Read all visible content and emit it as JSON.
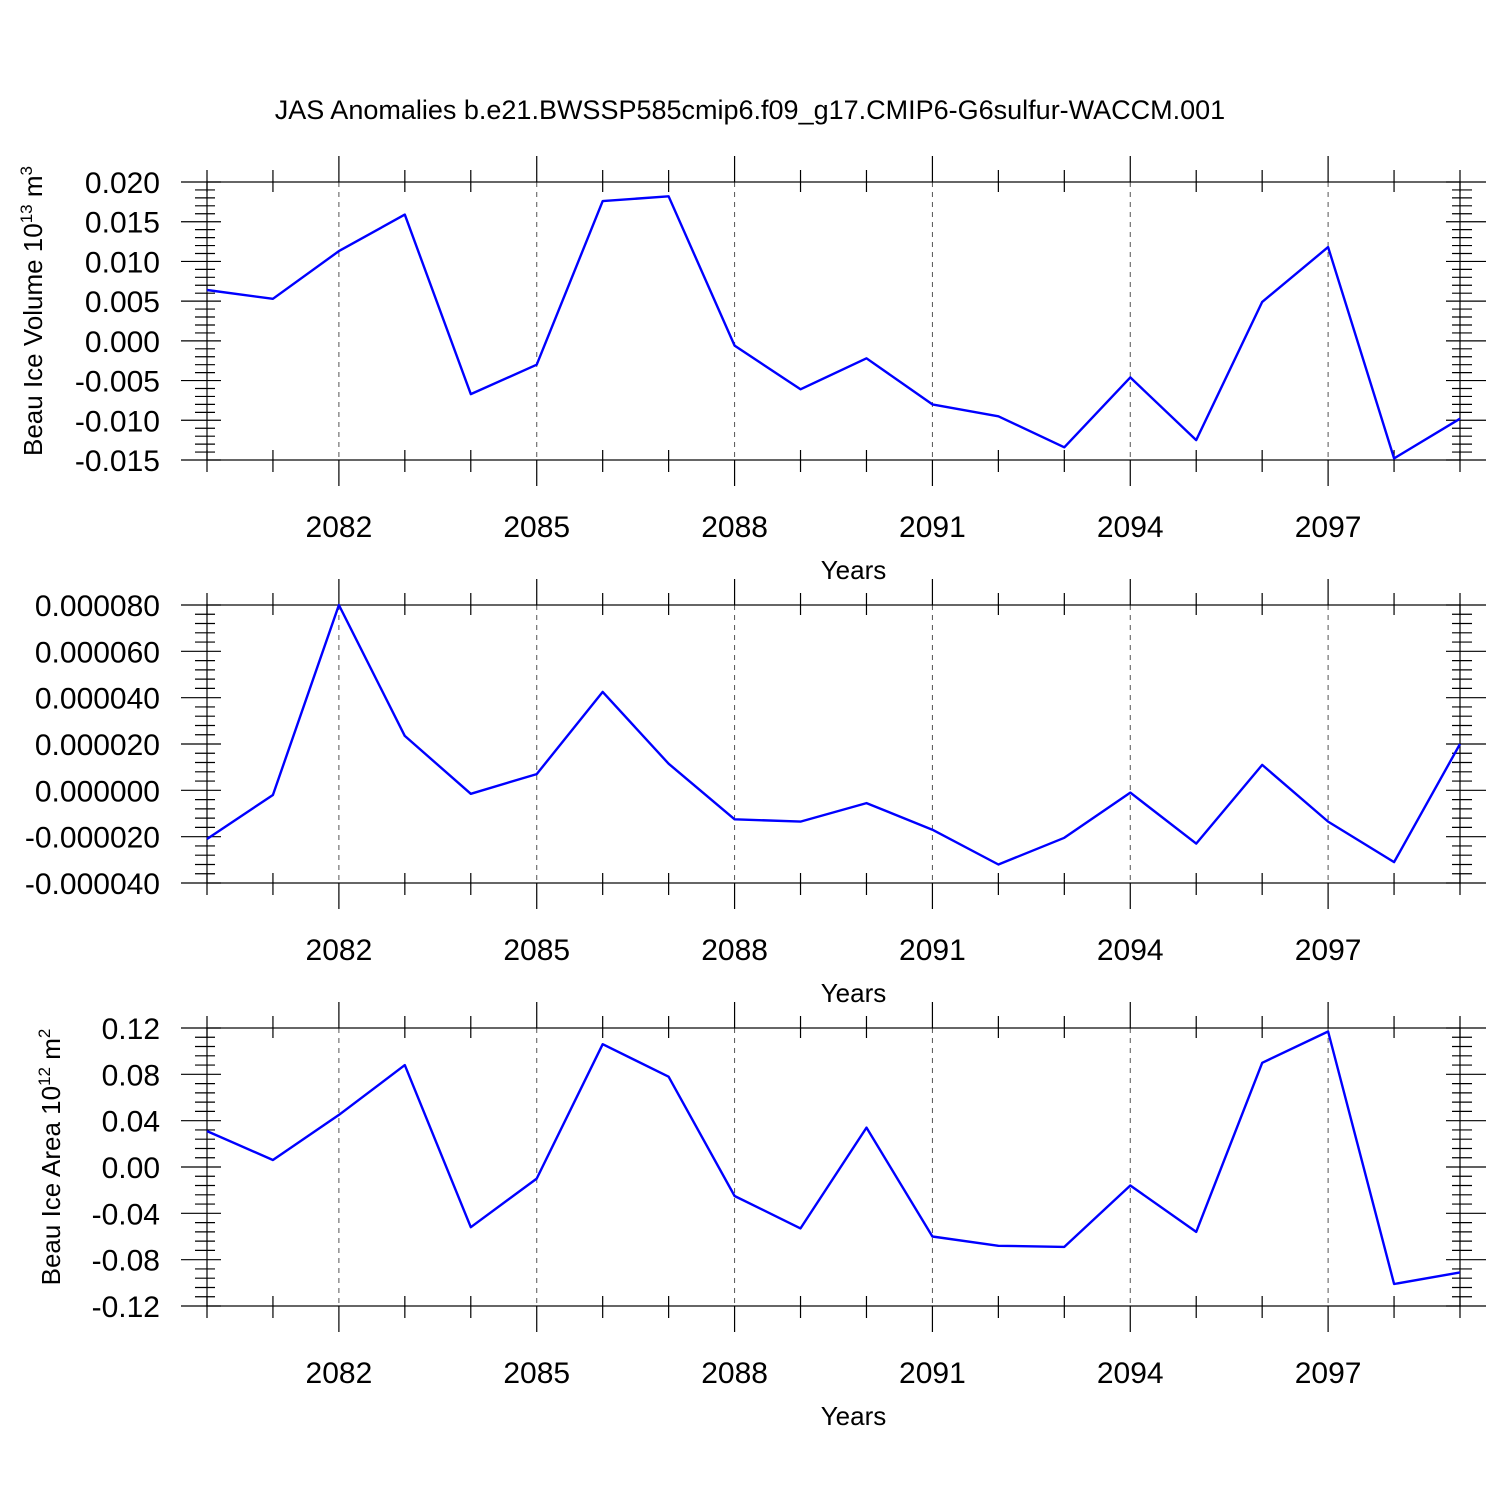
{
  "title": "JAS Anomalies b.e21.BWSSP585cmip6.f09_g17.CMIP6-G6sulfur-WACCM.001",
  "colors": {
    "series": "#0000ff",
    "grid": "#555555"
  },
  "chart_data": [
    {
      "type": "line",
      "ylabel_base": "Beau Ice Volume 10",
      "ylabel_sup": "13",
      "ylabel_unit": " m",
      "ylabel_unit_sup": "3",
      "xlabel": "Years",
      "xlim": [
        2080,
        2099
      ],
      "ylim": [
        -0.015,
        0.02
      ],
      "yticks": [
        -0.015,
        -0.01,
        -0.005,
        0.0,
        0.005,
        0.01,
        0.015,
        0.02
      ],
      "ytick_labels": [
        "-0.015",
        "-0.010",
        "-0.005",
        "0.000",
        "0.005",
        "0.010",
        "0.015",
        "0.020"
      ],
      "xticks": [
        2082,
        2085,
        2088,
        2091,
        2094,
        2097
      ],
      "xtick_labels": [
        "2082",
        "2085",
        "2088",
        "2091",
        "2094",
        "2097"
      ],
      "grid": "dashed vertical at labeled years",
      "series": [
        {
          "color": "#0000ff",
          "x": [
            2080,
            2081,
            2082,
            2083,
            2084,
            2085,
            2086,
            2087,
            2088,
            2089,
            2090,
            2091,
            2092,
            2093,
            2094,
            2095,
            2096,
            2097,
            2098,
            2099
          ],
          "values": [
            0.0064,
            0.0053,
            0.0113,
            0.0159,
            -0.0067,
            -0.003,
            0.0176,
            0.0182,
            -0.0006,
            -0.0061,
            -0.0022,
            -0.008,
            -0.0095,
            -0.0134,
            -0.0046,
            -0.0125,
            0.0049,
            0.0118,
            -0.0148,
            -0.0098
          ]
        }
      ]
    },
    {
      "type": "line",
      "ylabel_base": "",
      "ylabel_sup": "",
      "ylabel_unit": "",
      "ylabel_unit_sup": "",
      "xlabel": "Years",
      "xlim": [
        2080,
        2099
      ],
      "ylim": [
        -4e-05,
        8e-05
      ],
      "yticks": [
        -4e-05,
        -2e-05,
        0.0,
        2e-05,
        4e-05,
        6e-05,
        8e-05
      ],
      "ytick_labels": [
        "-0.000040",
        "-0.000020",
        "0.000000",
        "0.000020",
        "0.000040",
        "0.000060",
        "0.000080"
      ],
      "xticks": [
        2082,
        2085,
        2088,
        2091,
        2094,
        2097
      ],
      "xtick_labels": [
        "2082",
        "2085",
        "2088",
        "2091",
        "2094",
        "2097"
      ],
      "grid": "dashed vertical at labeled years",
      "series": [
        {
          "color": "#0000ff",
          "x": [
            2080,
            2081,
            2082,
            2083,
            2084,
            2085,
            2086,
            2087,
            2088,
            2089,
            2090,
            2091,
            2092,
            2093,
            2094,
            2095,
            2096,
            2097,
            2098,
            2099
          ],
          "values": [
            -2.1e-05,
            -2e-06,
            8e-05,
            2.35e-05,
            -1.5e-06,
            7e-06,
            4.25e-05,
            1.15e-05,
            -1.25e-05,
            -1.35e-05,
            -5.5e-06,
            -1.7e-05,
            -3.2e-05,
            -2.05e-05,
            -1e-06,
            -2.3e-05,
            1.1e-05,
            -1.35e-05,
            -3.1e-05,
            2e-05
          ]
        }
      ]
    },
    {
      "type": "line",
      "ylabel_base": "Beau Ice Area 10",
      "ylabel_sup": "12",
      "ylabel_unit": " m",
      "ylabel_unit_sup": "2",
      "xlabel": "Years",
      "xlim": [
        2080,
        2099
      ],
      "ylim": [
        -0.12,
        0.12
      ],
      "yticks": [
        -0.12,
        -0.08,
        -0.04,
        0.0,
        0.04,
        0.08,
        0.12
      ],
      "ytick_labels": [
        "-0.12",
        "-0.08",
        "-0.04",
        "0.00",
        "0.04",
        "0.08",
        "0.12"
      ],
      "xticks": [
        2082,
        2085,
        2088,
        2091,
        2094,
        2097
      ],
      "xtick_labels": [
        "2082",
        "2085",
        "2088",
        "2091",
        "2094",
        "2097"
      ],
      "grid": "dashed vertical at labeled years",
      "series": [
        {
          "color": "#0000ff",
          "x": [
            2080,
            2081,
            2082,
            2083,
            2084,
            2085,
            2086,
            2087,
            2088,
            2089,
            2090,
            2091,
            2092,
            2093,
            2094,
            2095,
            2096,
            2097,
            2098,
            2099
          ],
          "values": [
            0.031,
            0.006,
            0.045,
            0.088,
            -0.052,
            -0.01,
            0.106,
            0.078,
            -0.025,
            -0.053,
            0.034,
            -0.06,
            -0.068,
            -0.069,
            -0.016,
            -0.056,
            0.09,
            0.117,
            -0.101,
            -0.091
          ]
        }
      ]
    }
  ]
}
